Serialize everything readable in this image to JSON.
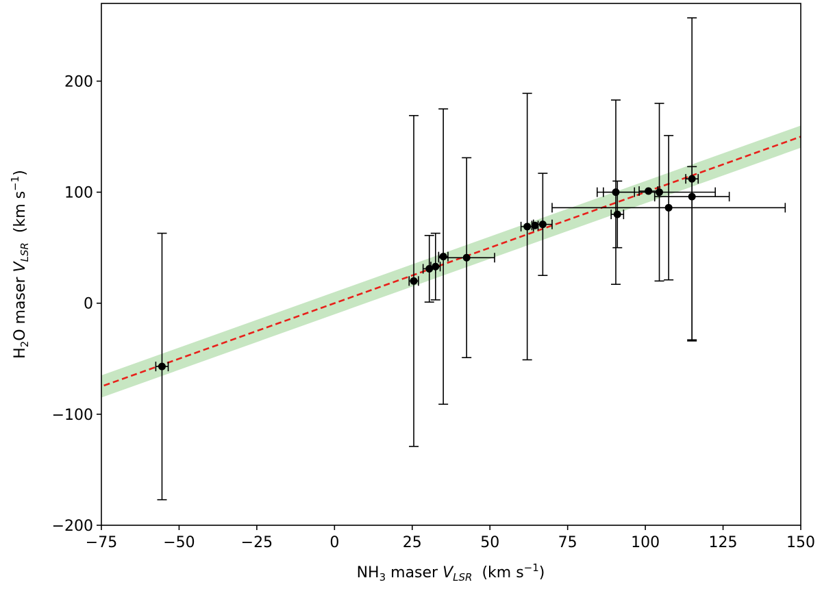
{
  "chart_data": {
    "type": "scatter",
    "title": "",
    "xlabel": {
      "prefix": "NH",
      "sub": "3",
      "middle": " maser ",
      "var": "V",
      "varsub": "LSR",
      "units_pre": "  (km s",
      "units_sup": "−1",
      "units_post": ")"
    },
    "ylabel": {
      "prefix": "H",
      "sub": "2",
      "middle": "O maser ",
      "var": "V",
      "varsub": "LSR",
      "units_pre": "  (km s",
      "units_sup": "−1",
      "units_post": ")"
    },
    "xlim": [
      -75,
      150
    ],
    "ylim": [
      -200,
      270
    ],
    "xticks": [
      -75,
      -50,
      -25,
      0,
      25,
      50,
      75,
      100,
      125,
      150
    ],
    "yticks": [
      -200,
      -100,
      0,
      100,
      200
    ],
    "xtick_labels": [
      "−75",
      "−50",
      "−25",
      "0",
      "25",
      "50",
      "75",
      "100",
      "125",
      "150"
    ],
    "ytick_labels": [
      "−200",
      "−100",
      "0",
      "100",
      "200"
    ],
    "grid": false,
    "fit_line": {
      "slope": 1.0,
      "intercept": 0,
      "color": "#e8201a",
      "style": "dashed"
    },
    "fit_band": {
      "halfwidth": 10,
      "color": "#c7e6c2"
    },
    "marker_color": "#000000",
    "points": [
      {
        "x": -55.5,
        "y": -57,
        "xerr": 2,
        "yerr_low": 120,
        "yerr_high": 120
      },
      {
        "x": 25.5,
        "y": 20,
        "xerr": 1.5,
        "yerr_low": 149,
        "yerr_high": 149
      },
      {
        "x": 30.5,
        "y": 31,
        "xerr": 2,
        "yerr_low": 30,
        "yerr_high": 30
      },
      {
        "x": 32.5,
        "y": 33,
        "xerr": 1.5,
        "yerr_low": 30,
        "yerr_high": 30
      },
      {
        "x": 35.0,
        "y": 42,
        "xerr": 1.5,
        "yerr_low": 133,
        "yerr_high": 133
      },
      {
        "x": 42.5,
        "y": 41,
        "xerr": 9,
        "yerr_low": 90,
        "yerr_high": 90
      },
      {
        "x": 62.0,
        "y": 69,
        "xerr": 2,
        "yerr_low": 120,
        "yerr_high": 120
      },
      {
        "x": 64.5,
        "y": 70,
        "xerr": 1,
        "yerr_low": 0,
        "yerr_high": 0
      },
      {
        "x": 67.0,
        "y": 71,
        "xerr": 3,
        "yerr_low": 46,
        "yerr_high": 46
      },
      {
        "x": 90.5,
        "y": 100,
        "xerr": 6,
        "yerr_low": 83,
        "yerr_high": 83
      },
      {
        "x": 91.0,
        "y": 80,
        "xerr": 2,
        "yerr_low": 30,
        "yerr_high": 30
      },
      {
        "x": 101.0,
        "y": 101,
        "xerr": 3,
        "yerr_low": 0,
        "yerr_high": 0
      },
      {
        "x": 104.5,
        "y": 100,
        "xerr": 18,
        "yerr_low": 80,
        "yerr_high": 80
      },
      {
        "x": 107.5,
        "y": 86,
        "xerr": 37.5,
        "yerr_low": 65,
        "yerr_high": 65
      },
      {
        "x": 115.0,
        "y": 112,
        "xerr": 2,
        "yerr_low": 145,
        "yerr_high": 145
      },
      {
        "x": 115.0,
        "y": 96,
        "xerr": 12,
        "yerr_low": 130,
        "yerr_high": 27
      }
    ]
  }
}
